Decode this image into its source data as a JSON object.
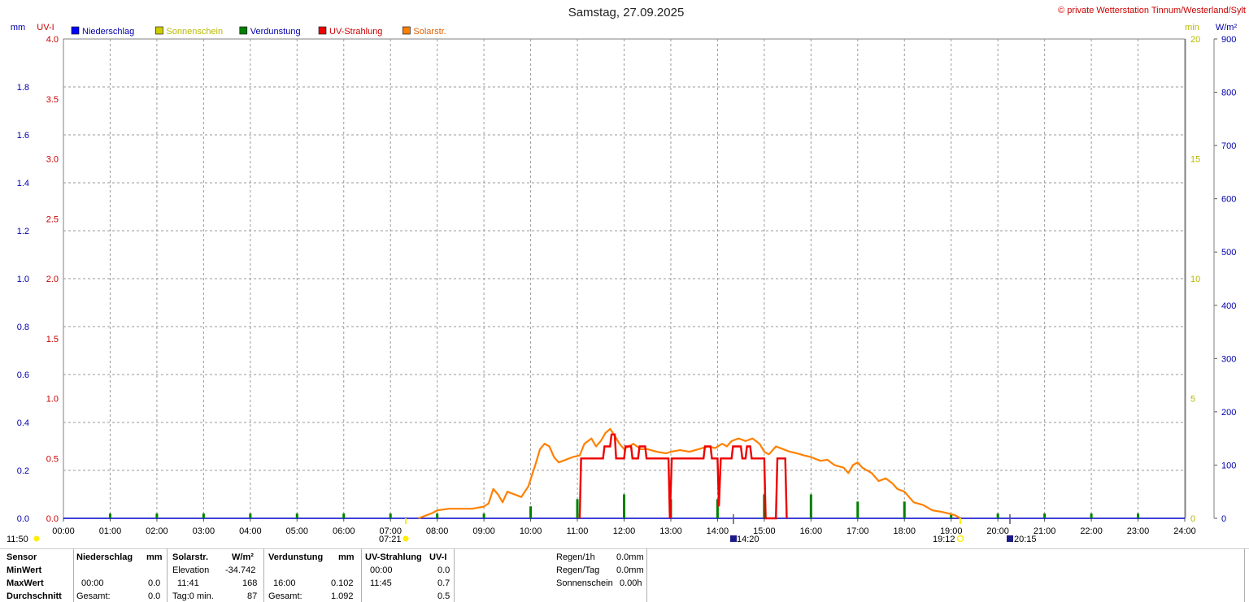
{
  "header": {
    "title": "Samstag, 27.09.2025",
    "copyright": "© private Wetterstation Tinnum/Westerland/Sylt"
  },
  "axes": {
    "left_unit_mm": "mm",
    "left_unit_uv": "UV-I",
    "right_unit_min": "min",
    "right_unit_wm2": "W/m²"
  },
  "legend": [
    {
      "label": "Niederschlag",
      "color": "#0000ff",
      "text_color": "#0000aa"
    },
    {
      "label": "Sonnenschein",
      "color": "#cccc00",
      "text_color": "#b8b800"
    },
    {
      "label": "Verdunstung",
      "color": "#008000",
      "text_color": "#0000aa"
    },
    {
      "label": "UV-Strahlung",
      "color": "#ee0000",
      "text_color": "#cc0000"
    },
    {
      "label": "Solarstr.",
      "color": "#ff8000",
      "text_color": "#e06000"
    }
  ],
  "markers": {
    "left_time": "11:50",
    "sunrise": "07:21",
    "sunset": "19:12",
    "moon1": "14:20",
    "moon2": "20:15"
  },
  "chart_data": {
    "type": "line",
    "title": "Samstag, 27.09.2025",
    "x_ticks": [
      "00:00",
      "01:00",
      "02:00",
      "03:00",
      "04:00",
      "05:00",
      "06:00",
      "07:00",
      "08:00",
      "09:00",
      "10:00",
      "11:00",
      "12:00",
      "13:00",
      "14:00",
      "15:00",
      "16:00",
      "17:00",
      "18:00",
      "19:00",
      "20:00",
      "21:00",
      "22:00",
      "23:00",
      "24:00"
    ],
    "y_mm_ticks": [
      "0.0",
      "0.2",
      "0.4",
      "0.6",
      "0.8",
      "1.0",
      "1.2",
      "1.4",
      "1.6",
      "1.8"
    ],
    "y_mm_range": [
      0,
      2.0
    ],
    "y_uv_ticks": [
      "0.0",
      "0.5",
      "1.0",
      "1.5",
      "2.0",
      "2.5",
      "3.0",
      "3.5",
      "4.0"
    ],
    "y_uv_range": [
      0,
      4.0
    ],
    "y_min_ticks": [
      "0",
      "5",
      "10",
      "15",
      "20"
    ],
    "y_min_range": [
      0,
      20
    ],
    "y_wm2_ticks": [
      "0",
      "100",
      "200",
      "300",
      "400",
      "500",
      "600",
      "700",
      "800",
      "900"
    ],
    "y_wm2_range": [
      0,
      900
    ],
    "grid": true,
    "series": [
      {
        "name": "Solarstr.",
        "axis": "W/m²",
        "color": "#ff8000",
        "points": [
          [
            7.6,
            0
          ],
          [
            7.75,
            5
          ],
          [
            7.9,
            10
          ],
          [
            8.0,
            15
          ],
          [
            8.25,
            18
          ],
          [
            8.5,
            18
          ],
          [
            8.75,
            18
          ],
          [
            9.0,
            22
          ],
          [
            9.1,
            28
          ],
          [
            9.2,
            55
          ],
          [
            9.3,
            45
          ],
          [
            9.4,
            30
          ],
          [
            9.5,
            50
          ],
          [
            9.65,
            45
          ],
          [
            9.8,
            40
          ],
          [
            9.95,
            60
          ],
          [
            10.1,
            100
          ],
          [
            10.2,
            130
          ],
          [
            10.3,
            140
          ],
          [
            10.4,
            135
          ],
          [
            10.5,
            115
          ],
          [
            10.6,
            105
          ],
          [
            10.75,
            110
          ],
          [
            10.9,
            115
          ],
          [
            11.05,
            118
          ],
          [
            11.15,
            140
          ],
          [
            11.3,
            150
          ],
          [
            11.4,
            135
          ],
          [
            11.5,
            145
          ],
          [
            11.6,
            160
          ],
          [
            11.7,
            168
          ],
          [
            11.8,
            155
          ],
          [
            11.9,
            140
          ],
          [
            12.0,
            130
          ],
          [
            12.1,
            135
          ],
          [
            12.2,
            140
          ],
          [
            12.35,
            130
          ],
          [
            12.5,
            130
          ],
          [
            12.7,
            125
          ],
          [
            12.9,
            122
          ],
          [
            13.0,
            125
          ],
          [
            13.2,
            128
          ],
          [
            13.4,
            125
          ],
          [
            13.6,
            130
          ],
          [
            13.8,
            135
          ],
          [
            13.95,
            132
          ],
          [
            14.1,
            140
          ],
          [
            14.2,
            135
          ],
          [
            14.3,
            145
          ],
          [
            14.45,
            150
          ],
          [
            14.6,
            145
          ],
          [
            14.75,
            150
          ],
          [
            14.9,
            140
          ],
          [
            15.0,
            125
          ],
          [
            15.1,
            120
          ],
          [
            15.25,
            135
          ],
          [
            15.4,
            130
          ],
          [
            15.55,
            125
          ],
          [
            15.7,
            122
          ],
          [
            15.85,
            118
          ],
          [
            16.0,
            115
          ],
          [
            16.2,
            108
          ],
          [
            16.35,
            110
          ],
          [
            16.5,
            100
          ],
          [
            16.7,
            95
          ],
          [
            16.8,
            85
          ],
          [
            16.9,
            100
          ],
          [
            17.0,
            105
          ],
          [
            17.1,
            95
          ],
          [
            17.3,
            85
          ],
          [
            17.45,
            70
          ],
          [
            17.6,
            75
          ],
          [
            17.75,
            65
          ],
          [
            17.85,
            55
          ],
          [
            18.0,
            50
          ],
          [
            18.1,
            40
          ],
          [
            18.2,
            30
          ],
          [
            18.4,
            25
          ],
          [
            18.6,
            15
          ],
          [
            18.8,
            12
          ],
          [
            19.0,
            8
          ],
          [
            19.1,
            5
          ],
          [
            19.2,
            0
          ]
        ]
      },
      {
        "name": "UV-Strahlung",
        "axis": "UV-I",
        "color": "#ee0000",
        "points": [
          [
            11.05,
            0
          ],
          [
            11.08,
            0.5
          ],
          [
            11.55,
            0.5
          ],
          [
            11.58,
            0.6
          ],
          [
            11.7,
            0.6
          ],
          [
            11.73,
            0.7
          ],
          [
            11.8,
            0.7
          ],
          [
            11.83,
            0.5
          ],
          [
            12.0,
            0.5
          ],
          [
            12.03,
            0.6
          ],
          [
            12.15,
            0.6
          ],
          [
            12.18,
            0.5
          ],
          [
            12.3,
            0.5
          ],
          [
            12.33,
            0.6
          ],
          [
            12.45,
            0.6
          ],
          [
            12.48,
            0.5
          ],
          [
            12.95,
            0.5
          ],
          [
            12.98,
            0.0
          ],
          [
            13.02,
            0.5
          ],
          [
            13.7,
            0.5
          ],
          [
            13.73,
            0.6
          ],
          [
            13.85,
            0.6
          ],
          [
            13.88,
            0.5
          ],
          [
            14.0,
            0.5
          ],
          [
            14.03,
            0.1
          ],
          [
            14.07,
            0.5
          ],
          [
            14.3,
            0.5
          ],
          [
            14.33,
            0.6
          ],
          [
            14.5,
            0.6
          ],
          [
            14.53,
            0.5
          ],
          [
            14.6,
            0.5
          ],
          [
            14.63,
            0.6
          ],
          [
            14.7,
            0.6
          ],
          [
            14.73,
            0.5
          ],
          [
            15.0,
            0.5
          ],
          [
            15.03,
            0.0
          ],
          [
            15.25,
            0.0
          ],
          [
            15.28,
            0.5
          ],
          [
            15.45,
            0.5
          ],
          [
            15.48,
            0.0
          ]
        ]
      },
      {
        "name": "Verdunstung",
        "axis": "mm",
        "color": "#008000",
        "bars": [
          [
            1,
            0.02
          ],
          [
            2,
            0.02
          ],
          [
            3,
            0.02
          ],
          [
            4,
            0.02
          ],
          [
            5,
            0.02
          ],
          [
            6,
            0.02
          ],
          [
            7,
            0.02
          ],
          [
            8,
            0.02
          ],
          [
            9,
            0.02
          ],
          [
            10,
            0.05
          ],
          [
            11,
            0.08
          ],
          [
            12,
            0.1
          ],
          [
            13,
            0.08
          ],
          [
            14,
            0.08
          ],
          [
            15,
            0.1
          ],
          [
            16,
            0.1
          ],
          [
            17,
            0.07
          ],
          [
            18,
            0.07
          ],
          [
            19,
            0.02
          ],
          [
            20,
            0.02
          ],
          [
            21,
            0.02
          ],
          [
            22,
            0.02
          ],
          [
            23,
            0.02
          ]
        ]
      }
    ]
  },
  "table": {
    "rows": [
      "Sensor",
      "MinWert",
      "MaxWert",
      "Durchschnitt"
    ],
    "niederschlag": {
      "header": "Niederschlag",
      "unit": "mm",
      "max_time": "00:00",
      "max_val": "0.0",
      "avg_label": "Gesamt:",
      "avg_val": "0.0"
    },
    "solar": {
      "header": "Solarstr.",
      "unit": "W/m²",
      "min_label": "Elevation",
      "min_val": "-34.742",
      "max_time": "11:41",
      "max_val": "168",
      "avg_label": "Tag:0 min.",
      "avg_val": "87"
    },
    "verdunstung": {
      "header": "Verdunstung",
      "unit": "mm",
      "max_time": "16:00",
      "max_val": "0.102",
      "avg_label": "Gesamt:",
      "avg_val": "1.092"
    },
    "uv": {
      "header": "UV-Strahlung",
      "unit": "UV-I",
      "min_time": "00:00",
      "min_val": "0.0",
      "max_time": "11:45",
      "max_val": "0.7",
      "avg_val": "0.5"
    },
    "regen": [
      {
        "label": "Regen/1h",
        "value": "0.0mm"
      },
      {
        "label": "Regen/Tag",
        "value": "0.0mm"
      },
      {
        "label": "Sonnenschein",
        "value": "0.00h"
      }
    ]
  }
}
